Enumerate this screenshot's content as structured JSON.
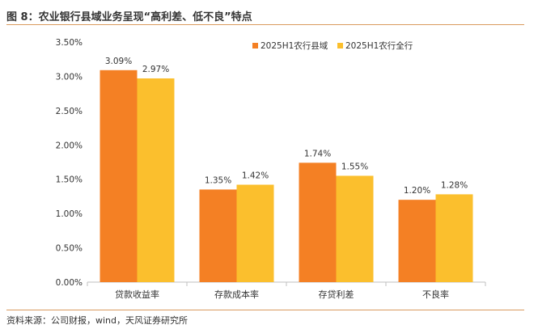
{
  "figure": {
    "title": "图 8：农业银行县域业务呈现“高利差、低不良”特点",
    "source": "资料来源：公司财报，wind，天风证券研究所"
  },
  "colors": {
    "series1": "#f48024",
    "series2": "#fbbf2d",
    "axis": "#bfbfbf",
    "text": "#333333",
    "rule": "#d99a5e"
  },
  "chart_data": {
    "type": "bar",
    "title": "",
    "xlabel": "",
    "ylabel": "",
    "categories": [
      "贷款收益率",
      "存款成本率",
      "存贷利差",
      "不良率"
    ],
    "series": [
      {
        "name": "2025H1农行县域",
        "values": [
          3.09,
          1.35,
          1.74,
          1.2
        ],
        "labels": [
          "3.09%",
          "1.35%",
          "1.74%",
          "1.20%"
        ]
      },
      {
        "name": "2025H1农行全行",
        "values": [
          2.97,
          1.42,
          1.55,
          1.28
        ],
        "labels": [
          "2.97%",
          "1.42%",
          "1.55%",
          "1.28%"
        ]
      }
    ],
    "ylim": [
      0,
      3.5
    ],
    "yticks": [
      0,
      0.5,
      1.0,
      1.5,
      2.0,
      2.5,
      3.0,
      3.5
    ],
    "ytick_labels": [
      "0.00%",
      "0.50%",
      "1.00%",
      "1.50%",
      "2.00%",
      "2.50%",
      "3.00%",
      "3.50%"
    ],
    "legend_position": "top-right",
    "grid": false
  }
}
